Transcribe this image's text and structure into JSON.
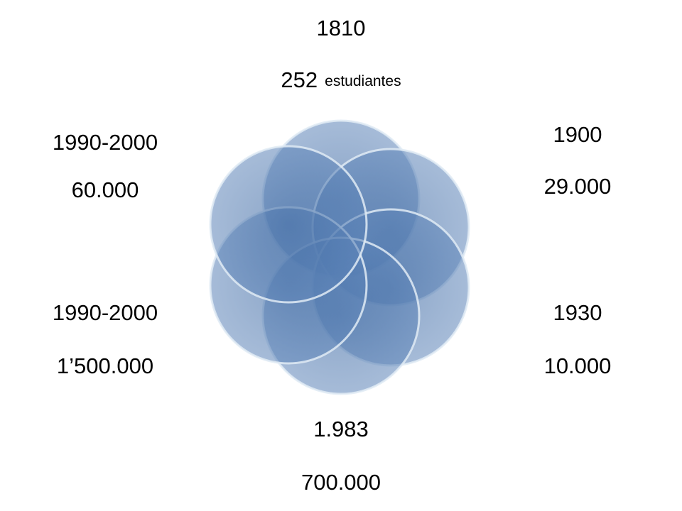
{
  "items": [
    {
      "year": "1810",
      "count": "252",
      "unit": "estudiantes"
    },
    {
      "year": "1900",
      "count": "29.000"
    },
    {
      "year": "1930",
      "count": "10.000"
    },
    {
      "year": "1.983",
      "count": "700.000"
    },
    {
      "year": "1990-2000",
      "count": "1’500.000"
    },
    {
      "year": "1990-2000",
      "count": "60.000"
    }
  ]
}
